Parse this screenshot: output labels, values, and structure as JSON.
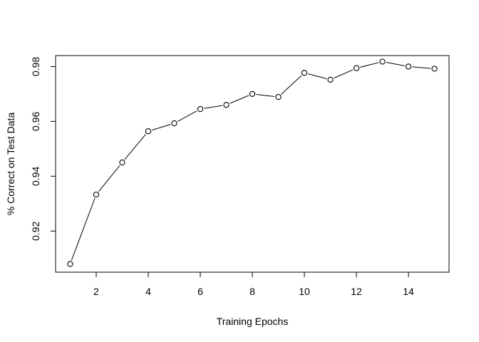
{
  "chart_data": {
    "type": "line",
    "title": "",
    "xlabel": "Training Epochs",
    "ylabel": "% Correct on Test Data",
    "x": [
      1,
      2,
      3,
      4,
      5,
      6,
      7,
      8,
      9,
      10,
      11,
      12,
      13,
      14,
      15
    ],
    "y": [
      0.908,
      0.9333,
      0.945,
      0.9564,
      0.9593,
      0.9645,
      0.966,
      0.97,
      0.9689,
      0.9777,
      0.9752,
      0.9794,
      0.9818,
      0.98,
      0.9792
    ],
    "xticks": [
      "2",
      "4",
      "6",
      "8",
      "10",
      "12",
      "14"
    ],
    "yticks": [
      "0.92",
      "0.94",
      "0.96",
      "0.98"
    ],
    "xlim": [
      0.44,
      15.56
    ],
    "ylim": [
      0.905,
      0.984
    ],
    "grid": false,
    "marker": "open-circle",
    "line_color": "#000000"
  }
}
